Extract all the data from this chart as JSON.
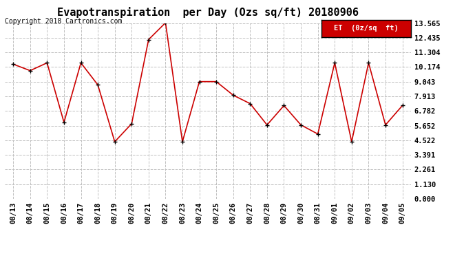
{
  "title": "Evapotranspiration  per Day (Ozs sq/ft) 20180906",
  "copyright": "Copyright 2018 Cartronics.com",
  "legend_label": "ET  (0z/sq  ft)",
  "x_labels": [
    "08/13",
    "08/14",
    "08/15",
    "08/16",
    "08/17",
    "08/18",
    "08/19",
    "08/20",
    "08/21",
    "08/22",
    "08/23",
    "08/24",
    "08/25",
    "08/26",
    "08/27",
    "08/28",
    "08/29",
    "08/30",
    "08/31",
    "09/01",
    "09/02",
    "09/03",
    "09/04",
    "09/05"
  ],
  "y_values": [
    10.4,
    9.9,
    10.5,
    5.9,
    10.5,
    8.8,
    4.4,
    5.8,
    12.3,
    13.6,
    4.4,
    9.05,
    9.05,
    8.0,
    7.35,
    5.7,
    7.2,
    5.7,
    5.0,
    10.5,
    4.4,
    10.5,
    5.7,
    7.2
  ],
  "ylim": [
    0.0,
    13.565
  ],
  "yticks": [
    0.0,
    1.13,
    2.261,
    3.391,
    4.522,
    5.652,
    6.782,
    7.913,
    9.043,
    10.174,
    11.304,
    12.435,
    13.565
  ],
  "line_color": "#cc0000",
  "marker_color": "#000000",
  "bg_color": "#ffffff",
  "grid_color": "#c0c0c0",
  "title_fontsize": 11,
  "copyright_fontsize": 7,
  "tick_fontsize": 7.5,
  "legend_bg": "#cc0000",
  "legend_fg": "#ffffff"
}
